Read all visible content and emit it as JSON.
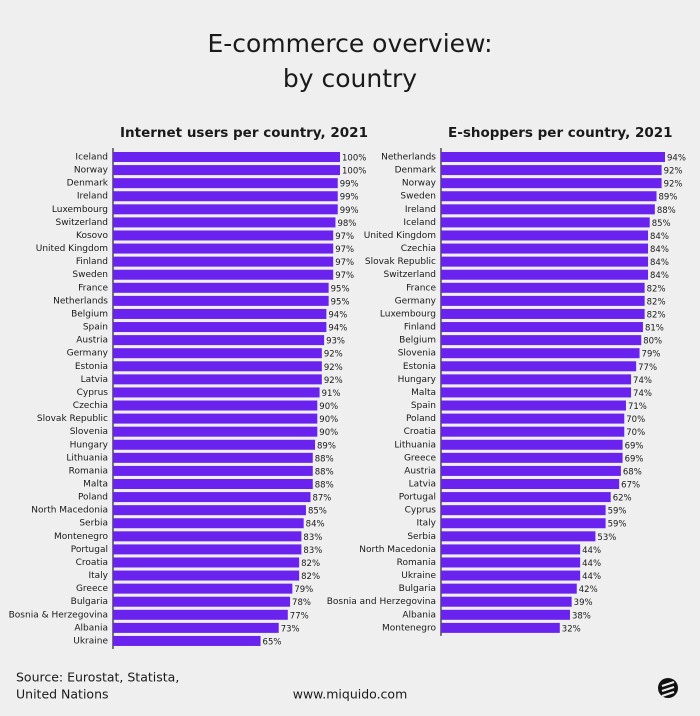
{
  "title": [
    "E-commerce overview:",
    "by country"
  ],
  "source": [
    "Source: Eurostat, Statista,",
    "United Nations"
  ],
  "website": "www.miquido.com",
  "chart_data": [
    {
      "type": "bar",
      "orientation": "horizontal",
      "title": "Internet users per country, 2021",
      "color": "#6a22ee",
      "xlim": [
        0,
        100
      ],
      "categories": [
        "Iceland",
        "Norway",
        "Denmark",
        "Ireland",
        "Luxembourg",
        "Switzerland",
        "Kosovo",
        "United Kingdom",
        "Finland",
        "Sweden",
        "France",
        "Netherlands",
        "Belgium",
        "Spain",
        "Austria",
        "Germany",
        "Estonia",
        "Latvia",
        "Cyprus",
        "Czechia",
        "Slovak Republic",
        "Slovenia",
        "Hungary",
        "Lithuania",
        "Romania",
        "Malta",
        "Poland",
        "North Macedonia",
        "Serbia",
        "Montenegro",
        "Portugal",
        "Croatia",
        "Italy",
        "Greece",
        "Bulgaria",
        "Bosnia & Herzegovina",
        "Albania",
        "Ukraine"
      ],
      "values": [
        100,
        100,
        99,
        99,
        99,
        98,
        97,
        97,
        97,
        97,
        95,
        95,
        94,
        94,
        93,
        92,
        92,
        92,
        91,
        90,
        90,
        90,
        89,
        88,
        88,
        88,
        87,
        85,
        84,
        83,
        83,
        82,
        82,
        79,
        78,
        77,
        73,
        65
      ],
      "value_labels": [
        "100%",
        "100%",
        "99%",
        "99%",
        "99%",
        "98%",
        "97%",
        "97%",
        "97%",
        "97%",
        "95%",
        "95%",
        "94%",
        "94%",
        "93%",
        "92%",
        "92%",
        "92%",
        "91%",
        "90%",
        "90%",
        "90%",
        "89%",
        "88%",
        "88%",
        "88%",
        "87%",
        "85%",
        "84%",
        "83%",
        "83%",
        "82%",
        "82%",
        "79%",
        "78%",
        "77%",
        "73%",
        "65%"
      ]
    },
    {
      "type": "bar",
      "orientation": "horizontal",
      "title": "E-shoppers per country, 2021",
      "color": "#6a22ee",
      "xlim": [
        -38,
        94
      ],
      "categories": [
        "Netherlands",
        "Denmark",
        "Norway",
        "Sweden",
        "Ireland",
        "Iceland",
        "United Kingdom",
        "Czechia",
        "Slovak Republic",
        "Switzerland",
        "France",
        "Germany",
        "Luxembourg",
        "Finland",
        "Belgium",
        "Slovenia",
        "Estonia",
        "Hungary",
        "Malta",
        "Spain",
        "Poland",
        "Croatia",
        "Lithuania",
        "Greece",
        "Austria",
        "Latvia",
        "Portugal",
        "Cyprus",
        "Italy",
        "Serbia",
        "North Macedonia",
        "Romania",
        "Ukraine",
        "Bulgaria",
        "Bosnia and Herzegovina",
        "Albania",
        "Montenegro"
      ],
      "values": [
        94,
        92,
        92,
        89,
        88,
        85,
        84,
        84,
        84,
        84,
        82,
        82,
        82,
        81,
        80,
        79,
        77,
        74,
        74,
        71,
        70,
        70,
        69,
        69,
        68,
        67,
        62,
        59,
        59,
        53,
        44,
        44,
        44,
        42,
        39,
        38,
        32
      ],
      "value_labels": [
        "94%",
        "92%",
        "92%",
        "89%",
        "88%",
        "85%",
        "84%",
        "84%",
        "84%",
        "84%",
        "82%",
        "82%",
        "82%",
        "81%",
        "80%",
        "79%",
        "77%",
        "74%",
        "74%",
        "71%",
        "70%",
        "70%",
        "69%",
        "69%",
        "68%",
        "67%",
        "62%",
        "59%",
        "59%",
        "53%",
        "44%",
        "44%",
        "44%",
        "42%",
        "39%",
        "38%",
        "32%"
      ]
    }
  ]
}
